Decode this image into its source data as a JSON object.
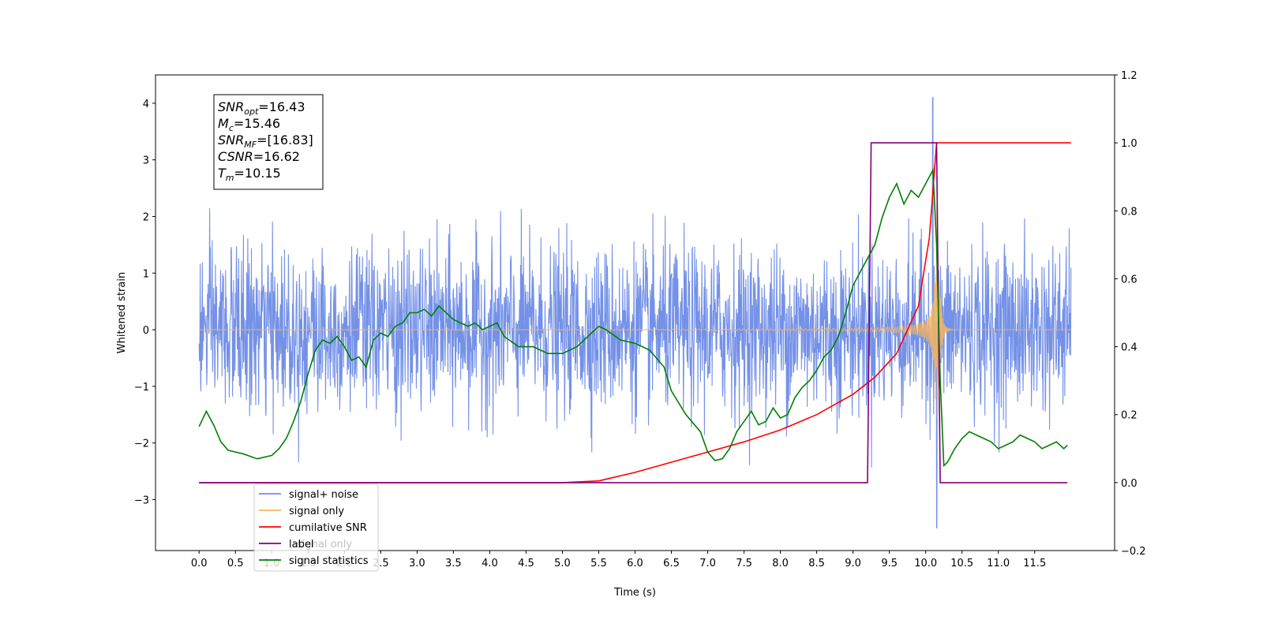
{
  "chart_data": {
    "type": "line",
    "title": "",
    "xlabel": "Time (s)",
    "ylabel": "Whitened strain",
    "ylabel_right": "",
    "xlim": [
      -0.6,
      12.6
    ],
    "ylim": [
      -3.9,
      4.5
    ],
    "ylim_right": [
      -0.2,
      1.2
    ],
    "x_ticks": [
      0.0,
      0.5,
      1.0,
      1.5,
      2.0,
      2.5,
      3.0,
      3.5,
      4.0,
      4.5,
      5.0,
      5.5,
      6.0,
      6.5,
      7.0,
      7.5,
      8.0,
      8.5,
      9.0,
      9.5,
      10.0,
      10.5,
      11.0,
      11.5
    ],
    "x_tick_labels": [
      "0.0",
      "0.5",
      "1.0",
      "1.5",
      "2.0",
      "2.5",
      "3.0",
      "3.5",
      "4.0",
      "4.5",
      "5.0",
      "5.5",
      "6.0",
      "6.5",
      "7.0",
      "7.5",
      "8.0",
      "8.5",
      "9.0",
      "9.5",
      "10.0",
      "10.5",
      "11.0",
      "11.5"
    ],
    "y_ticks": [
      -3,
      -2,
      -1,
      0,
      1,
      2,
      3,
      4
    ],
    "y_tick_labels": [
      "−3",
      "−2",
      "−1",
      "0",
      "1",
      "2",
      "3",
      "4"
    ],
    "y_right_ticks": [
      -0.2,
      0.0,
      0.2,
      0.4,
      0.6,
      0.8,
      1.0,
      1.2
    ],
    "y_right_tick_labels": [
      "−0.2",
      "0.0",
      "0.2",
      "0.4",
      "0.6",
      "0.8",
      "1.0",
      "1.2"
    ],
    "grid": false,
    "legend_position": "bottom-left",
    "series": [
      {
        "name": "signal+ noise",
        "axis": "left",
        "color": "#6d8be6",
        "style": "noise",
        "x_range": [
          0.0,
          12.0
        ],
        "std": 0.72,
        "peak_max": 4.1,
        "peak_min": -3.5
      },
      {
        "name": "signal only",
        "axis": "left",
        "color": "#f5b461",
        "style": "chirp",
        "x_range": [
          0.0,
          12.0
        ],
        "merger_time": 10.15,
        "peak_amplitude": 2.9
      },
      {
        "name": "cumilative SNR",
        "axis": "right",
        "color": "#ff0000",
        "x": [
          0.0,
          5.0,
          5.5,
          6.0,
          6.5,
          7.0,
          7.5,
          8.0,
          8.5,
          9.0,
          9.3,
          9.6,
          9.9,
          10.05,
          10.1,
          10.15,
          12.0
        ],
        "y": [
          0.0,
          0.0,
          0.005,
          0.03,
          0.06,
          0.09,
          0.12,
          0.155,
          0.2,
          0.26,
          0.31,
          0.38,
          0.52,
          0.72,
          0.86,
          1.0,
          1.0
        ]
      },
      {
        "name": "label",
        "axis": "right",
        "color": "#800080",
        "x": [
          0.0,
          9.2,
          9.25,
          10.15,
          10.2,
          11.95
        ],
        "y": [
          0.0,
          0.0,
          1.0,
          1.0,
          0.0,
          0.0
        ]
      },
      {
        "name": "signal statistics",
        "axis": "right",
        "color": "#008000",
        "x": [
          0.0,
          0.1,
          0.2,
          0.3,
          0.4,
          0.5,
          0.6,
          0.8,
          1.0,
          1.1,
          1.2,
          1.3,
          1.4,
          1.5,
          1.6,
          1.7,
          1.8,
          1.9,
          2.0,
          2.1,
          2.2,
          2.3,
          2.4,
          2.5,
          2.6,
          2.7,
          2.8,
          2.9,
          3.0,
          3.1,
          3.2,
          3.3,
          3.4,
          3.5,
          3.6,
          3.7,
          3.8,
          3.9,
          4.0,
          4.1,
          4.2,
          4.4,
          4.6,
          4.8,
          5.0,
          5.2,
          5.4,
          5.5,
          5.6,
          5.8,
          6.0,
          6.2,
          6.4,
          6.5,
          6.7,
          6.9,
          7.0,
          7.1,
          7.2,
          7.3,
          7.4,
          7.5,
          7.6,
          7.7,
          7.8,
          7.9,
          8.0,
          8.1,
          8.2,
          8.3,
          8.4,
          8.5,
          8.6,
          8.7,
          8.8,
          8.9,
          9.0,
          9.1,
          9.2,
          9.3,
          9.4,
          9.5,
          9.6,
          9.7,
          9.8,
          9.9,
          10.0,
          10.1,
          10.15,
          10.2,
          10.25,
          10.3,
          10.4,
          10.5,
          10.6,
          10.7,
          10.8,
          10.9,
          11.0,
          11.1,
          11.2,
          11.3,
          11.4,
          11.5,
          11.6,
          11.7,
          11.8,
          11.9,
          11.95
        ],
        "y": [
          0.165,
          0.21,
          0.17,
          0.12,
          0.095,
          0.09,
          0.085,
          0.07,
          0.08,
          0.1,
          0.13,
          0.18,
          0.24,
          0.32,
          0.39,
          0.42,
          0.41,
          0.43,
          0.4,
          0.36,
          0.37,
          0.34,
          0.42,
          0.44,
          0.43,
          0.46,
          0.47,
          0.5,
          0.5,
          0.51,
          0.49,
          0.52,
          0.5,
          0.48,
          0.47,
          0.46,
          0.47,
          0.45,
          0.46,
          0.47,
          0.43,
          0.4,
          0.4,
          0.38,
          0.38,
          0.4,
          0.44,
          0.46,
          0.45,
          0.42,
          0.41,
          0.39,
          0.34,
          0.27,
          0.2,
          0.15,
          0.09,
          0.065,
          0.07,
          0.1,
          0.15,
          0.18,
          0.21,
          0.17,
          0.18,
          0.22,
          0.19,
          0.2,
          0.25,
          0.28,
          0.3,
          0.33,
          0.37,
          0.39,
          0.43,
          0.5,
          0.58,
          0.62,
          0.66,
          0.7,
          0.78,
          0.84,
          0.88,
          0.82,
          0.86,
          0.84,
          0.88,
          0.92,
          0.7,
          0.3,
          0.05,
          0.06,
          0.1,
          0.13,
          0.15,
          0.14,
          0.13,
          0.12,
          0.1,
          0.11,
          0.12,
          0.14,
          0.13,
          0.12,
          0.1,
          0.11,
          0.12,
          0.1,
          0.11
        ]
      }
    ],
    "annotation_box": {
      "lines": [
        {
          "name": "SNR",
          "sub": "opt",
          "value": "=16.43"
        },
        {
          "name": "M",
          "sub": "c",
          "value": "=15.46"
        },
        {
          "name": "SNR",
          "sub": "MF",
          "value": "=[16.83]"
        },
        {
          "name": "CSNR",
          "sub": "",
          "value": "=16.62"
        },
        {
          "name": "T",
          "sub": "m",
          "value": "=10.15"
        }
      ]
    },
    "legend_overlay_labels": [
      "signal only",
      "signal statistics"
    ]
  }
}
